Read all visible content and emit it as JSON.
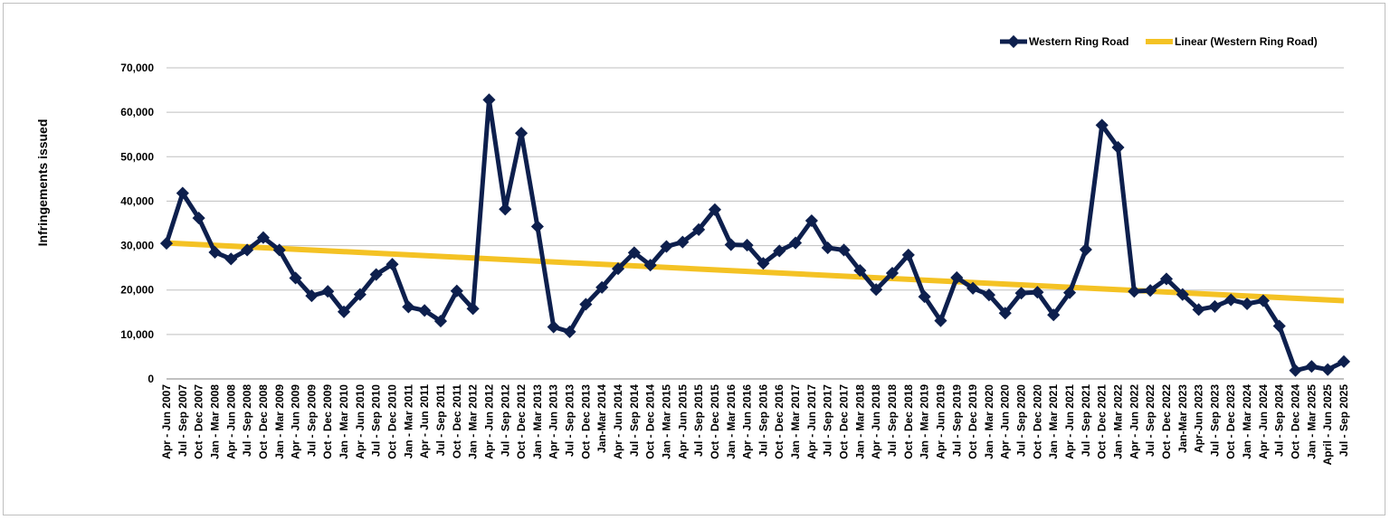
{
  "chart_data": {
    "type": "line",
    "ylabel": "Infringements issued",
    "xlabel": "",
    "ylim": [
      0,
      70000
    ],
    "ytick_step": 10000,
    "ytick_labels": [
      "0",
      "10,000",
      "20,000",
      "30,000",
      "40,000",
      "50,000",
      "60,000",
      "70,000"
    ],
    "grid": true,
    "legend_position": "top-right",
    "colors": {
      "series": "#0d1f4d",
      "trend": "#f4c224",
      "grid": "#bfbfbf",
      "axis": "#808080"
    },
    "categories": [
      "Apr - Jun 2007",
      "Jul - Sep 2007",
      "Oct - Dec 2007",
      "Jan - Mar 2008",
      "Apr - Jun 2008",
      "Jul - Sep 2008",
      "Oct - Dec 2008",
      "Jan - Mar 2009",
      "Apr - Jun 2009",
      "Jul - Sep 2009",
      "Oct - Dec 2009",
      "Jan - Mar 2010",
      "Apr - Jun 2010",
      "Jul - Sep 2010",
      "Oct - Dec 2010",
      "Jan - Mar 2011",
      "Apr - Jun 2011",
      "Jul - Sep 2011",
      "Oct - Dec 2011",
      "Jan - Mar 2012",
      "Apr - Jun 2012",
      "Jul - Sep 2012",
      "Oct - Dec 2012",
      "Jan - Mar 2013",
      "Apr - Jun 2013",
      "Jul - Sep 2013",
      "Oct - Dec 2013",
      "Jan-Mar 2014",
      "Apr - Jun 2014",
      "Jul - Sep 2014",
      "Oct - Dec 2014",
      "Jan - Mar 2015",
      "Apr - Jun 2015",
      "Jul - Sep 2015",
      "Oct - Dec 2015",
      "Jan - Mar 2016",
      "Apr - Jun 2016",
      "Jul - Sep 2016",
      "Oct - Dec 2016",
      "Jan - Mar 2017",
      "Apr - Jun 2017",
      "Jul - Sep 2017",
      "Oct - Dec 2017",
      "Jan - Mar 2018",
      "Apr - Jun 2018",
      "Jul - Sep 2018",
      "Oct - Dec 2018",
      "Jan - Mar 2019",
      "Apr - Jun 2019",
      "Jul - Sep 2019",
      "Oct - Dec 2019",
      "Jan - Mar 2020",
      "Apr - Jun 2020",
      "Jul - Sep 2020",
      "Oct - Dec 2020",
      "Jan - Mar 2021",
      "Apr - Jun 2021",
      "Jul - Sep 2021",
      "Oct - Dec 2021",
      "Jan - Mar 2022",
      "Apr - Jun 2022",
      "Jul - Sep 2022",
      "Oct - Dec 2022",
      "Jan-Mar 2023",
      "Apr-Jun 2023",
      "Jul - Sep 2023",
      "Oct - Dec 2023",
      "Jan - Mar 2024",
      "Apr - Jun 2024",
      "Jul - Sep 2024",
      "Oct - Dec 2024",
      "Jan - Mar 2025",
      "April - Jun 2025",
      "Jul - Sep 2025"
    ],
    "series": [
      {
        "name": "Western Ring Road",
        "values": [
          30500,
          41800,
          36200,
          28500,
          27000,
          29000,
          31800,
          29000,
          22700,
          18700,
          19700,
          15100,
          19000,
          23500,
          25800,
          16200,
          15400,
          13000,
          19800,
          15800,
          62800,
          38200,
          55300,
          34300,
          11700,
          10600,
          16800,
          20600,
          24800,
          28400,
          25600,
          29800,
          30800,
          33600,
          38100,
          30200,
          30100,
          26000,
          28800,
          30600,
          35600,
          29500,
          29000,
          24400,
          20100,
          23800,
          27900,
          18500,
          13100,
          22800,
          20400,
          18900,
          14800,
          19300,
          19500,
          14400,
          19400,
          29100,
          57100,
          52100,
          19700,
          19900,
          22500,
          19000,
          15600,
          16300,
          17800,
          16900,
          17600,
          11900,
          1900,
          2800,
          2100,
          3900
        ]
      }
    ],
    "trendline": {
      "name": "Linear (Western Ring Road)",
      "start": 30600,
      "end": 17600
    }
  }
}
